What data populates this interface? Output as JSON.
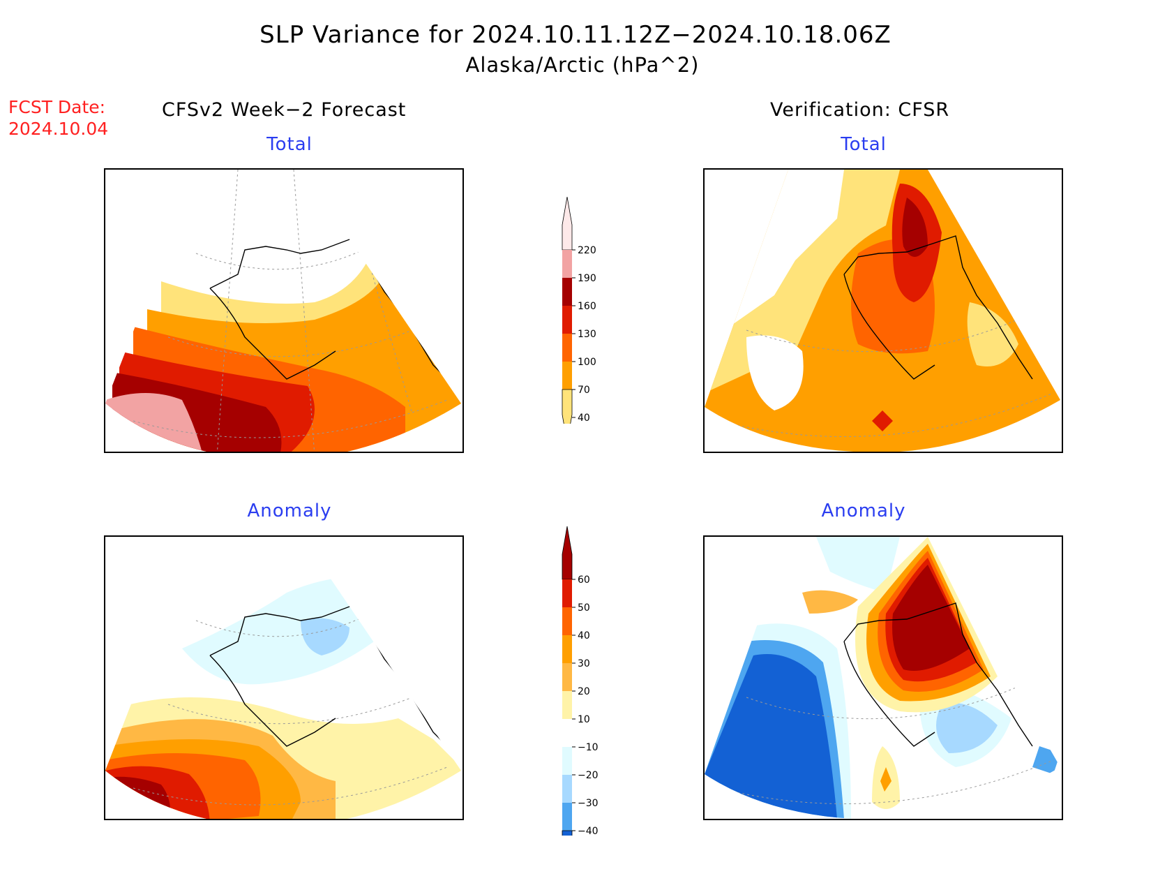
{
  "title": {
    "line1": "SLP Variance for 2024.10.11.12Z−2024.10.18.06Z",
    "line2": "Alaska/Arctic (hPa^2)"
  },
  "fcst": {
    "label": "FCST Date:",
    "date": "2024.10.04"
  },
  "columns": {
    "left": "CFSv2 Week−2 Forecast",
    "right": "Verification: CFSR"
  },
  "panels": {
    "forecast_total": {
      "title": "Total"
    },
    "verification_total": {
      "title": "Total"
    },
    "forecast_anomaly": {
      "title": "Anomaly"
    },
    "verification_anomaly": {
      "title": "Anomaly"
    }
  },
  "colorbars": {
    "total": {
      "labels": [
        "220",
        "190",
        "160",
        "130",
        "100",
        "70",
        "40"
      ],
      "colors_top_to_bottom": [
        "#fde9e9",
        "#f2a3a3",
        "#a50000",
        "#e01b00",
        "#ff6400",
        "#ff9f00",
        "#ffe37a"
      ]
    },
    "anomaly": {
      "labels": [
        "60",
        "50",
        "40",
        "30",
        "20",
        "10",
        "−10",
        "−20",
        "−30",
        "−40"
      ],
      "colors_top_to_bottom": [
        "#a50000",
        "#e01b00",
        "#ff6400",
        "#ff9f00",
        "#ffb844",
        "#fff3a8",
        "#ffffff",
        "#e0fbff",
        "#a7d9ff",
        "#4ea6f0",
        "#1361d4"
      ]
    }
  }
}
